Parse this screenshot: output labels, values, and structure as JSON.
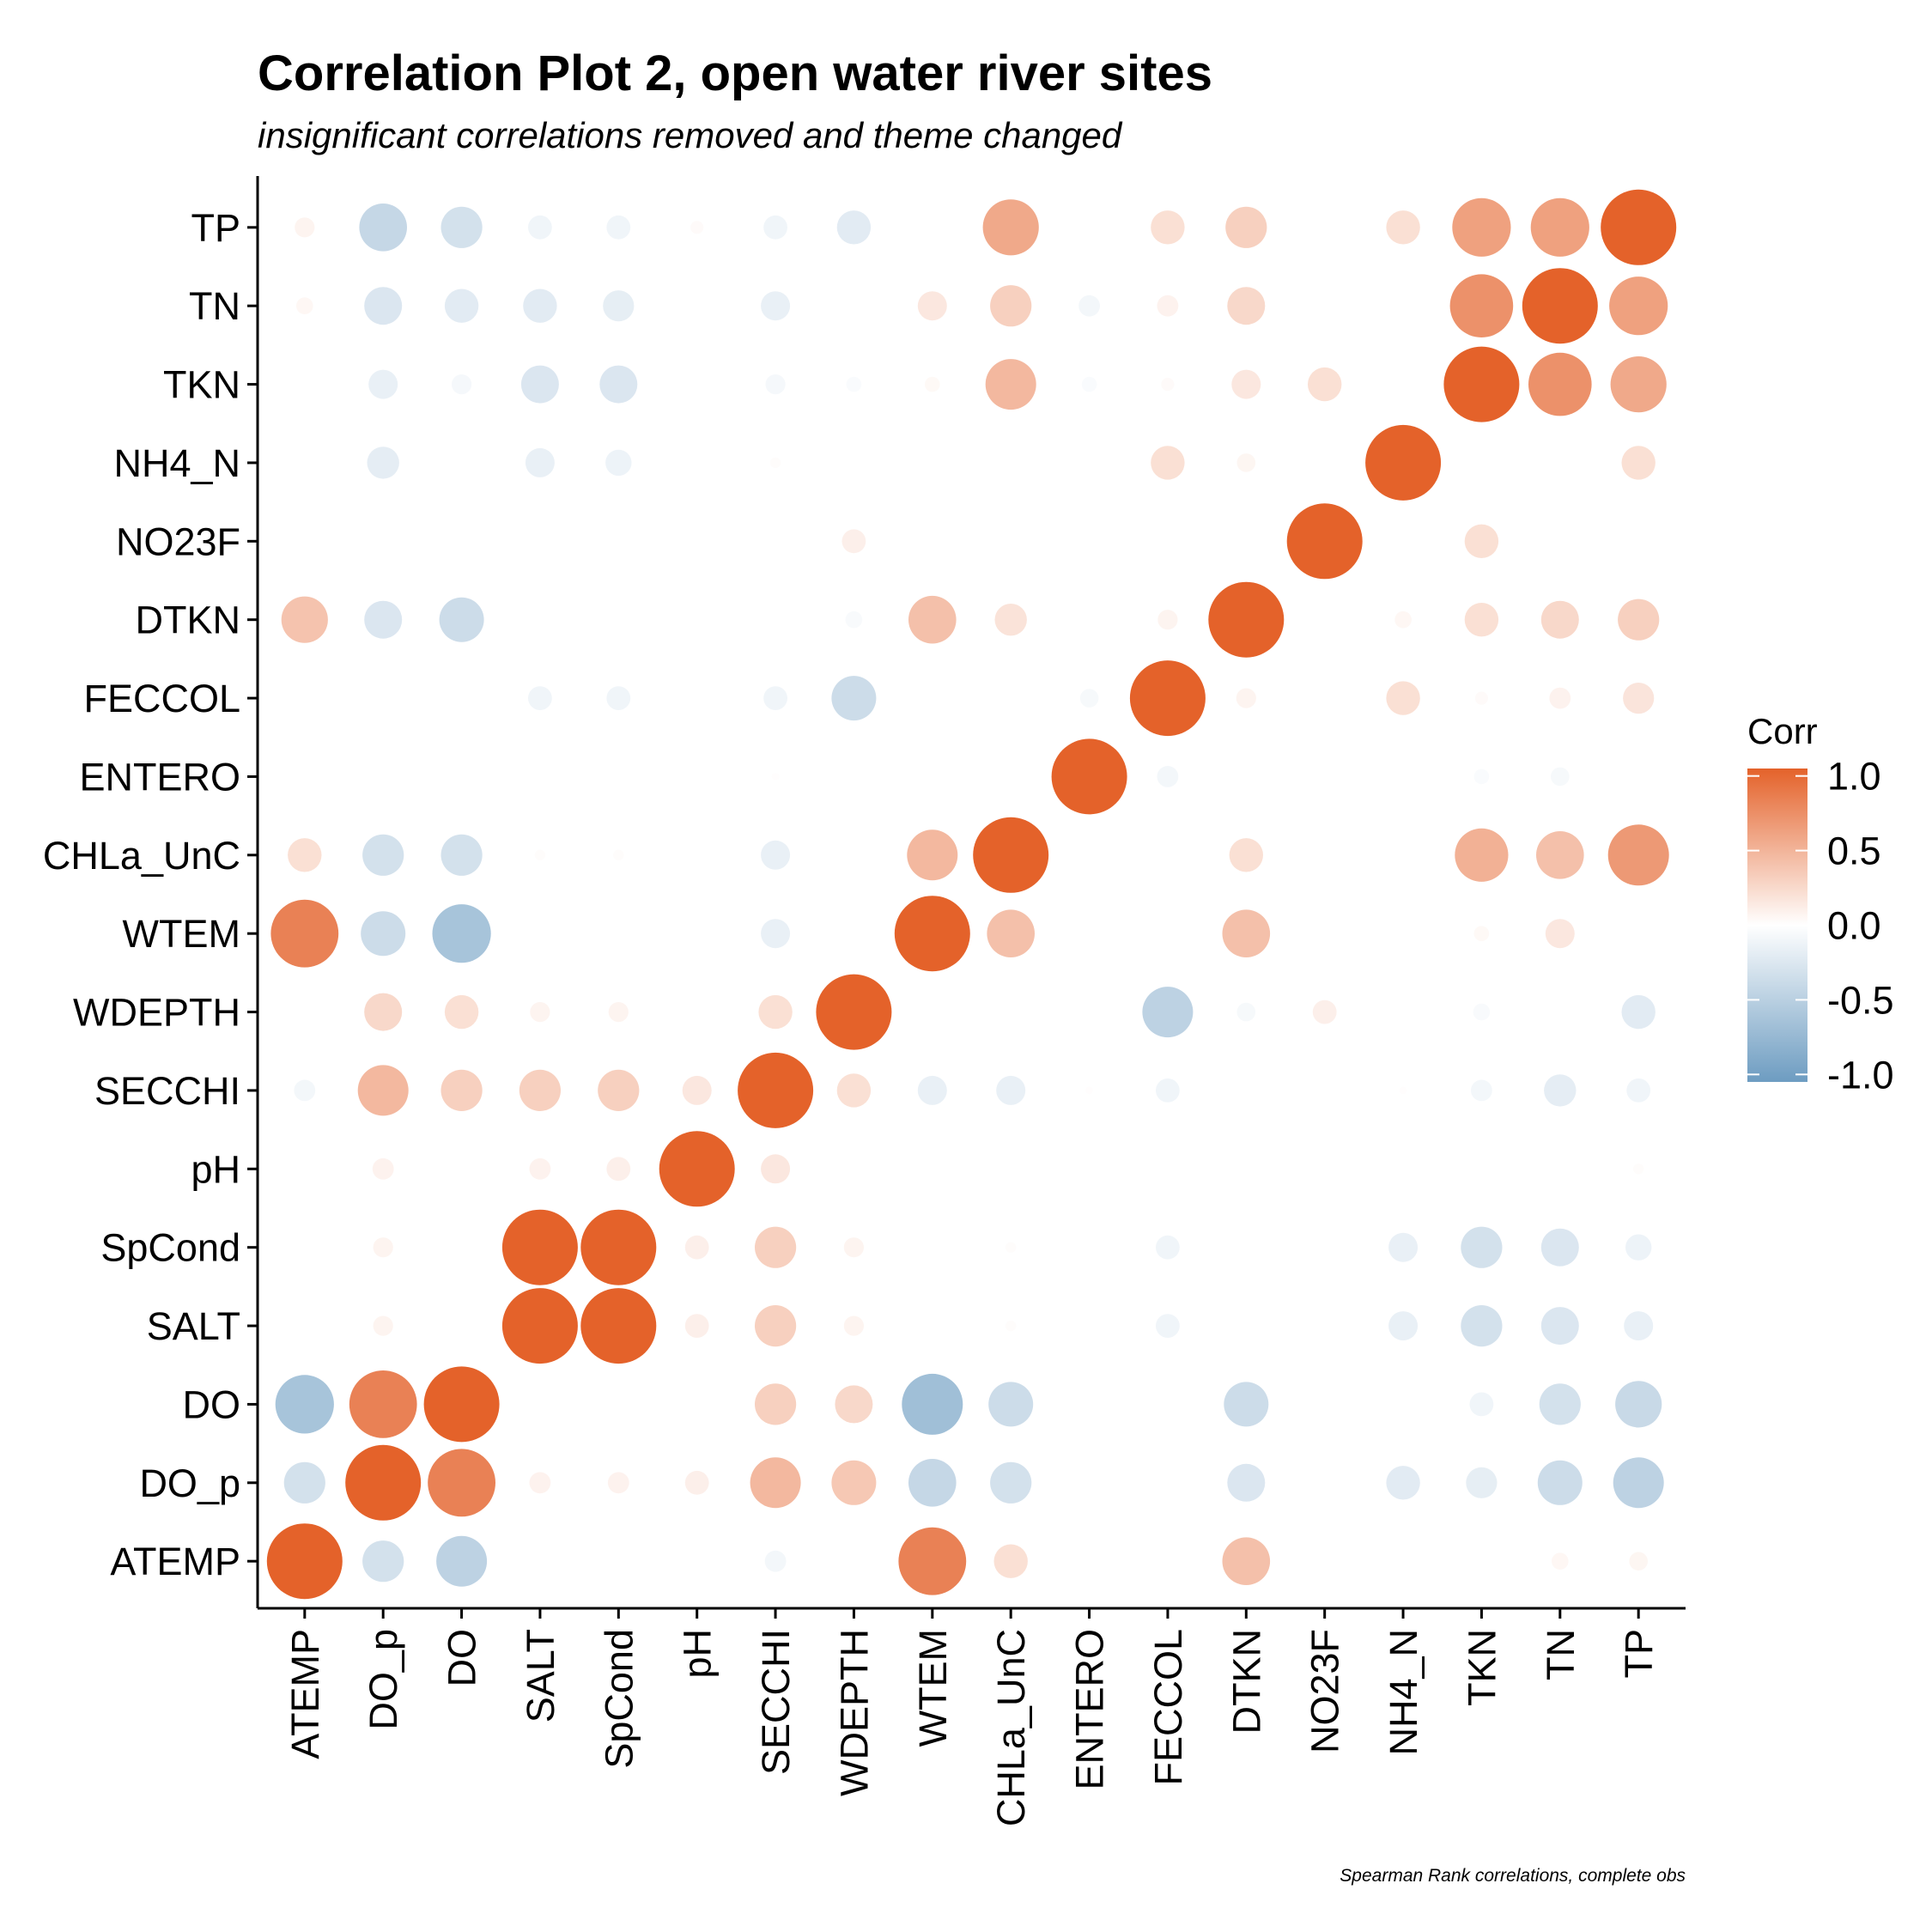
{
  "colors": {
    "low": "#6d9cc1",
    "mid": "#ffffff",
    "high": "#e4622a",
    "axis": "#000000"
  },
  "chart_data": {
    "type": "heatmap",
    "style": "circle",
    "title": "Correlation Plot 2, open water river sites",
    "subtitle": "insignificant correlations removed and theme changed",
    "caption": "Spearman Rank correlations, complete obs",
    "x_labels": [
      "ATEMP",
      "DO_p",
      "DO",
      "SALT",
      "SpCond",
      "pH",
      "SECCHI",
      "WDEPTH",
      "WTEM",
      "CHLa_UnC",
      "ENTERO",
      "FECCOL",
      "DTKN",
      "NO23F",
      "NH4_N",
      "TKN",
      "TN",
      "TP"
    ],
    "y_labels": [
      "ATEMP",
      "DO_p",
      "DO",
      "SALT",
      "SpCond",
      "pH",
      "SECCHI",
      "WDEPTH",
      "WTEM",
      "CHLa_UnC",
      "ENTERO",
      "FECCOL",
      "DTKN",
      "NO23F",
      "NH4_N",
      "TKN",
      "TN",
      "TP"
    ],
    "legend": {
      "title": "Corr",
      "ticks": [
        1.0,
        0.5,
        0.0,
        -0.5,
        -1.0
      ],
      "tick_labels": [
        "1.0",
        "0.5",
        "0.0",
        "-0.5",
        "-1.0"
      ],
      "range": [
        -1.05,
        1.05
      ],
      "position": "right"
    },
    "matrix": [
      [
        1.0,
        -0.3,
        -0.45,
        null,
        null,
        null,
        -0.08,
        null,
        0.8,
        0.2,
        null,
        null,
        0.4,
        null,
        null,
        null,
        0.05,
        0.06
      ],
      [
        -0.3,
        1.0,
        0.8,
        0.08,
        0.08,
        0.1,
        0.45,
        0.35,
        -0.4,
        -0.3,
        null,
        null,
        -0.25,
        null,
        -0.2,
        -0.17,
        -0.35,
        -0.45
      ],
      [
        -0.6,
        0.8,
        1.0,
        null,
        null,
        null,
        0.3,
        0.25,
        -0.65,
        -0.35,
        null,
        null,
        -0.35,
        null,
        null,
        -0.1,
        -0.3,
        -0.38
      ],
      [
        null,
        0.07,
        null,
        1.0,
        1.0,
        0.1,
        0.3,
        0.07,
        null,
        0.02,
        null,
        -0.1,
        null,
        null,
        -0.15,
        -0.3,
        -0.25,
        -0.15
      ],
      [
        null,
        0.07,
        null,
        1.0,
        1.0,
        0.1,
        0.3,
        0.07,
        null,
        0.02,
        null,
        -0.1,
        null,
        null,
        -0.15,
        -0.3,
        -0.25,
        -0.12
      ],
      [
        null,
        0.08,
        null,
        0.08,
        0.1,
        1.0,
        0.15,
        null,
        null,
        null,
        null,
        null,
        null,
        null,
        null,
        null,
        null,
        0.02
      ],
      [
        -0.08,
        0.45,
        0.3,
        0.3,
        0.3,
        0.15,
        1.0,
        0.2,
        -0.15,
        -0.15,
        0.01,
        -0.1,
        null,
        null,
        0.01,
        -0.08,
        -0.18,
        -0.1
      ],
      [
        null,
        0.25,
        0.2,
        0.07,
        0.07,
        null,
        0.2,
        1.0,
        null,
        null,
        null,
        -0.45,
        -0.06,
        0.1,
        null,
        -0.05,
        null,
        -0.2
      ],
      [
        0.8,
        -0.35,
        -0.6,
        null,
        null,
        null,
        -0.15,
        null,
        1.0,
        0.4,
        null,
        null,
        0.4,
        null,
        null,
        0.04,
        0.15,
        null
      ],
      [
        0.2,
        -0.3,
        -0.3,
        0.02,
        0.02,
        null,
        -0.15,
        null,
        0.45,
        1.0,
        null,
        null,
        0.2,
        null,
        null,
        0.5,
        0.4,
        0.65
      ],
      [
        null,
        null,
        null,
        null,
        null,
        null,
        0.01,
        null,
        null,
        null,
        1.0,
        -0.08,
        null,
        null,
        null,
        -0.04,
        -0.06,
        null
      ],
      [
        null,
        null,
        null,
        -0.1,
        -0.1,
        null,
        -0.1,
        -0.35,
        null,
        null,
        -0.06,
        1.0,
        0.07,
        null,
        0.2,
        0.03,
        0.08,
        0.17
      ],
      [
        0.38,
        -0.25,
        -0.35,
        null,
        null,
        null,
        null,
        -0.05,
        0.4,
        0.18,
        null,
        0.07,
        1.0,
        null,
        0.05,
        0.2,
        0.25,
        0.3
      ],
      [
        null,
        null,
        null,
        null,
        null,
        null,
        null,
        0.1,
        null,
        null,
        null,
        null,
        null,
        1.0,
        null,
        0.2,
        null,
        null
      ],
      [
        null,
        -0.18,
        null,
        -0.15,
        -0.12,
        null,
        0.02,
        null,
        null,
        null,
        null,
        0.2,
        0.06,
        null,
        1.0,
        null,
        null,
        0.2
      ],
      [
        null,
        -0.15,
        -0.07,
        -0.25,
        -0.25,
        null,
        -0.07,
        -0.04,
        0.04,
        0.45,
        -0.04,
        0.03,
        0.15,
        0.2,
        null,
        1.0,
        0.7,
        0.55
      ],
      [
        0.05,
        -0.25,
        -0.2,
        -0.2,
        -0.17,
        null,
        -0.15,
        null,
        0.15,
        0.3,
        -0.08,
        0.08,
        0.25,
        null,
        null,
        0.7,
        1.0,
        0.6
      ],
      [
        0.07,
        -0.4,
        -0.3,
        -0.1,
        -0.1,
        0.03,
        -0.1,
        -0.2,
        null,
        0.55,
        null,
        0.2,
        0.3,
        null,
        0.2,
        0.6,
        0.6,
        1.0
      ]
    ]
  }
}
